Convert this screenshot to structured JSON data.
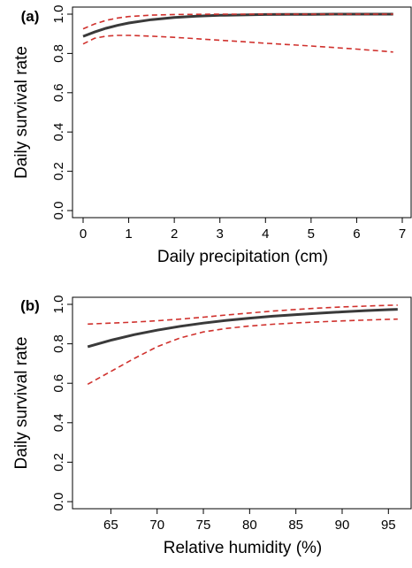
{
  "chart_data": [
    {
      "type": "line",
      "panel_label": "(a)",
      "xlabel": "Daily precipitation (cm)",
      "ylabel": "Daily survival rate",
      "xlim": [
        0,
        7
      ],
      "ylim": [
        0,
        1
      ],
      "xticks": [
        0,
        1,
        2,
        3,
        4,
        5,
        6,
        7
      ],
      "yticks": [
        0.0,
        0.2,
        0.4,
        0.6,
        0.8,
        1.0
      ],
      "ytick_labels": [
        "0.0",
        "0.2",
        "0.4",
        "0.6",
        "0.8",
        "1.0"
      ],
      "grid": false,
      "series": [
        {
          "style": "solid",
          "color": "#3a3a3a",
          "x": [
            0,
            0.25,
            0.5,
            0.75,
            1,
            1.5,
            2,
            2.5,
            3,
            3.5,
            4,
            4.5,
            5,
            5.5,
            6,
            6.5,
            6.8
          ],
          "y": [
            0.887,
            0.909,
            0.928,
            0.943,
            0.955,
            0.972,
            0.983,
            0.99,
            0.994,
            0.996,
            0.998,
            0.999,
            0.999,
            1.0,
            1.0,
            1.0,
            1.0
          ]
        },
        {
          "style": "dashed",
          "color": "#d0312d",
          "x": [
            0,
            0.25,
            0.5,
            0.75,
            1,
            1.5,
            2,
            2.5,
            3,
            3.5,
            4,
            4.5,
            5,
            5.5,
            6,
            6.5,
            6.8
          ],
          "y": [
            0.925,
            0.95,
            0.968,
            0.98,
            0.988,
            0.995,
            0.998,
            0.999,
            1.0,
            1.0,
            1.0,
            1.0,
            1.0,
            1.0,
            1.0,
            1.0,
            1.0
          ]
        },
        {
          "style": "dashed",
          "color": "#d0312d",
          "x": [
            0,
            0.25,
            0.5,
            0.75,
            1,
            1.5,
            2,
            2.5,
            3,
            3.5,
            4,
            4.5,
            5,
            5.5,
            6,
            6.5,
            6.8
          ],
          "y": [
            0.848,
            0.877,
            0.888,
            0.892,
            0.892,
            0.888,
            0.882,
            0.875,
            0.867,
            0.86,
            0.852,
            0.845,
            0.838,
            0.83,
            0.822,
            0.813,
            0.807
          ]
        }
      ]
    },
    {
      "type": "line",
      "panel_label": "(b)",
      "xlabel": "Relative humidity (%)",
      "ylabel": "Daily survival rate",
      "xlim": [
        62,
        96.5
      ],
      "ylim": [
        0,
        1
      ],
      "xticks": [
        65,
        70,
        75,
        80,
        85,
        90,
        95
      ],
      "yticks": [
        0.0,
        0.2,
        0.4,
        0.6,
        0.8,
        1.0
      ],
      "ytick_labels": [
        "0.0",
        "0.2",
        "0.4",
        "0.6",
        "0.8",
        "1.0"
      ],
      "grid": false,
      "series": [
        {
          "style": "solid",
          "color": "#3a3a3a",
          "x": [
            62.5,
            65,
            67.5,
            70,
            72.5,
            75,
            77.5,
            80,
            82.5,
            85,
            87.5,
            90,
            92.5,
            95,
            96
          ],
          "y": [
            0.785,
            0.818,
            0.846,
            0.869,
            0.889,
            0.905,
            0.919,
            0.93,
            0.94,
            0.948,
            0.955,
            0.962,
            0.968,
            0.973,
            0.975
          ]
        },
        {
          "style": "dashed",
          "color": "#d0312d",
          "x": [
            62.5,
            65,
            67.5,
            70,
            72.5,
            75,
            77.5,
            80,
            82.5,
            85,
            87.5,
            90,
            92.5,
            95,
            96
          ],
          "y": [
            0.9,
            0.905,
            0.91,
            0.917,
            0.925,
            0.935,
            0.946,
            0.956,
            0.966,
            0.974,
            0.981,
            0.987,
            0.991,
            0.995,
            0.996
          ]
        },
        {
          "style": "dashed",
          "color": "#d0312d",
          "x": [
            62.5,
            65,
            67.5,
            70,
            72.5,
            75,
            77.5,
            80,
            82.5,
            85,
            87.5,
            90,
            92.5,
            95,
            96
          ],
          "y": [
            0.595,
            0.66,
            0.725,
            0.785,
            0.83,
            0.86,
            0.878,
            0.89,
            0.899,
            0.906,
            0.911,
            0.916,
            0.92,
            0.924,
            0.925
          ]
        }
      ]
    }
  ]
}
